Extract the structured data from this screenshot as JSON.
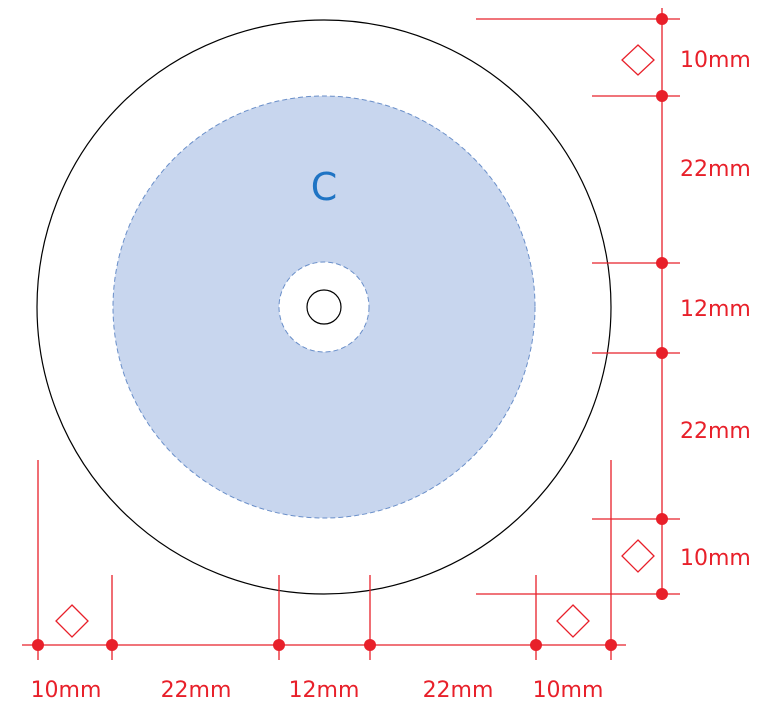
{
  "zone_label": "C",
  "colors": {
    "dimension": "#e8202a",
    "print_area_fill": "#c8d6ee",
    "print_area_outline": "#6a8fc9",
    "zone_label": "#1f74c4",
    "disc_outline": "#000000"
  },
  "vertical_dimensions": [
    "10mm",
    "22mm",
    "12mm",
    "22mm",
    "10mm"
  ],
  "horizontal_dimensions": [
    "10mm",
    "22mm",
    "12mm",
    "22mm",
    "10mm"
  ],
  "icons": {
    "margin_marker": "diamond-outline"
  }
}
